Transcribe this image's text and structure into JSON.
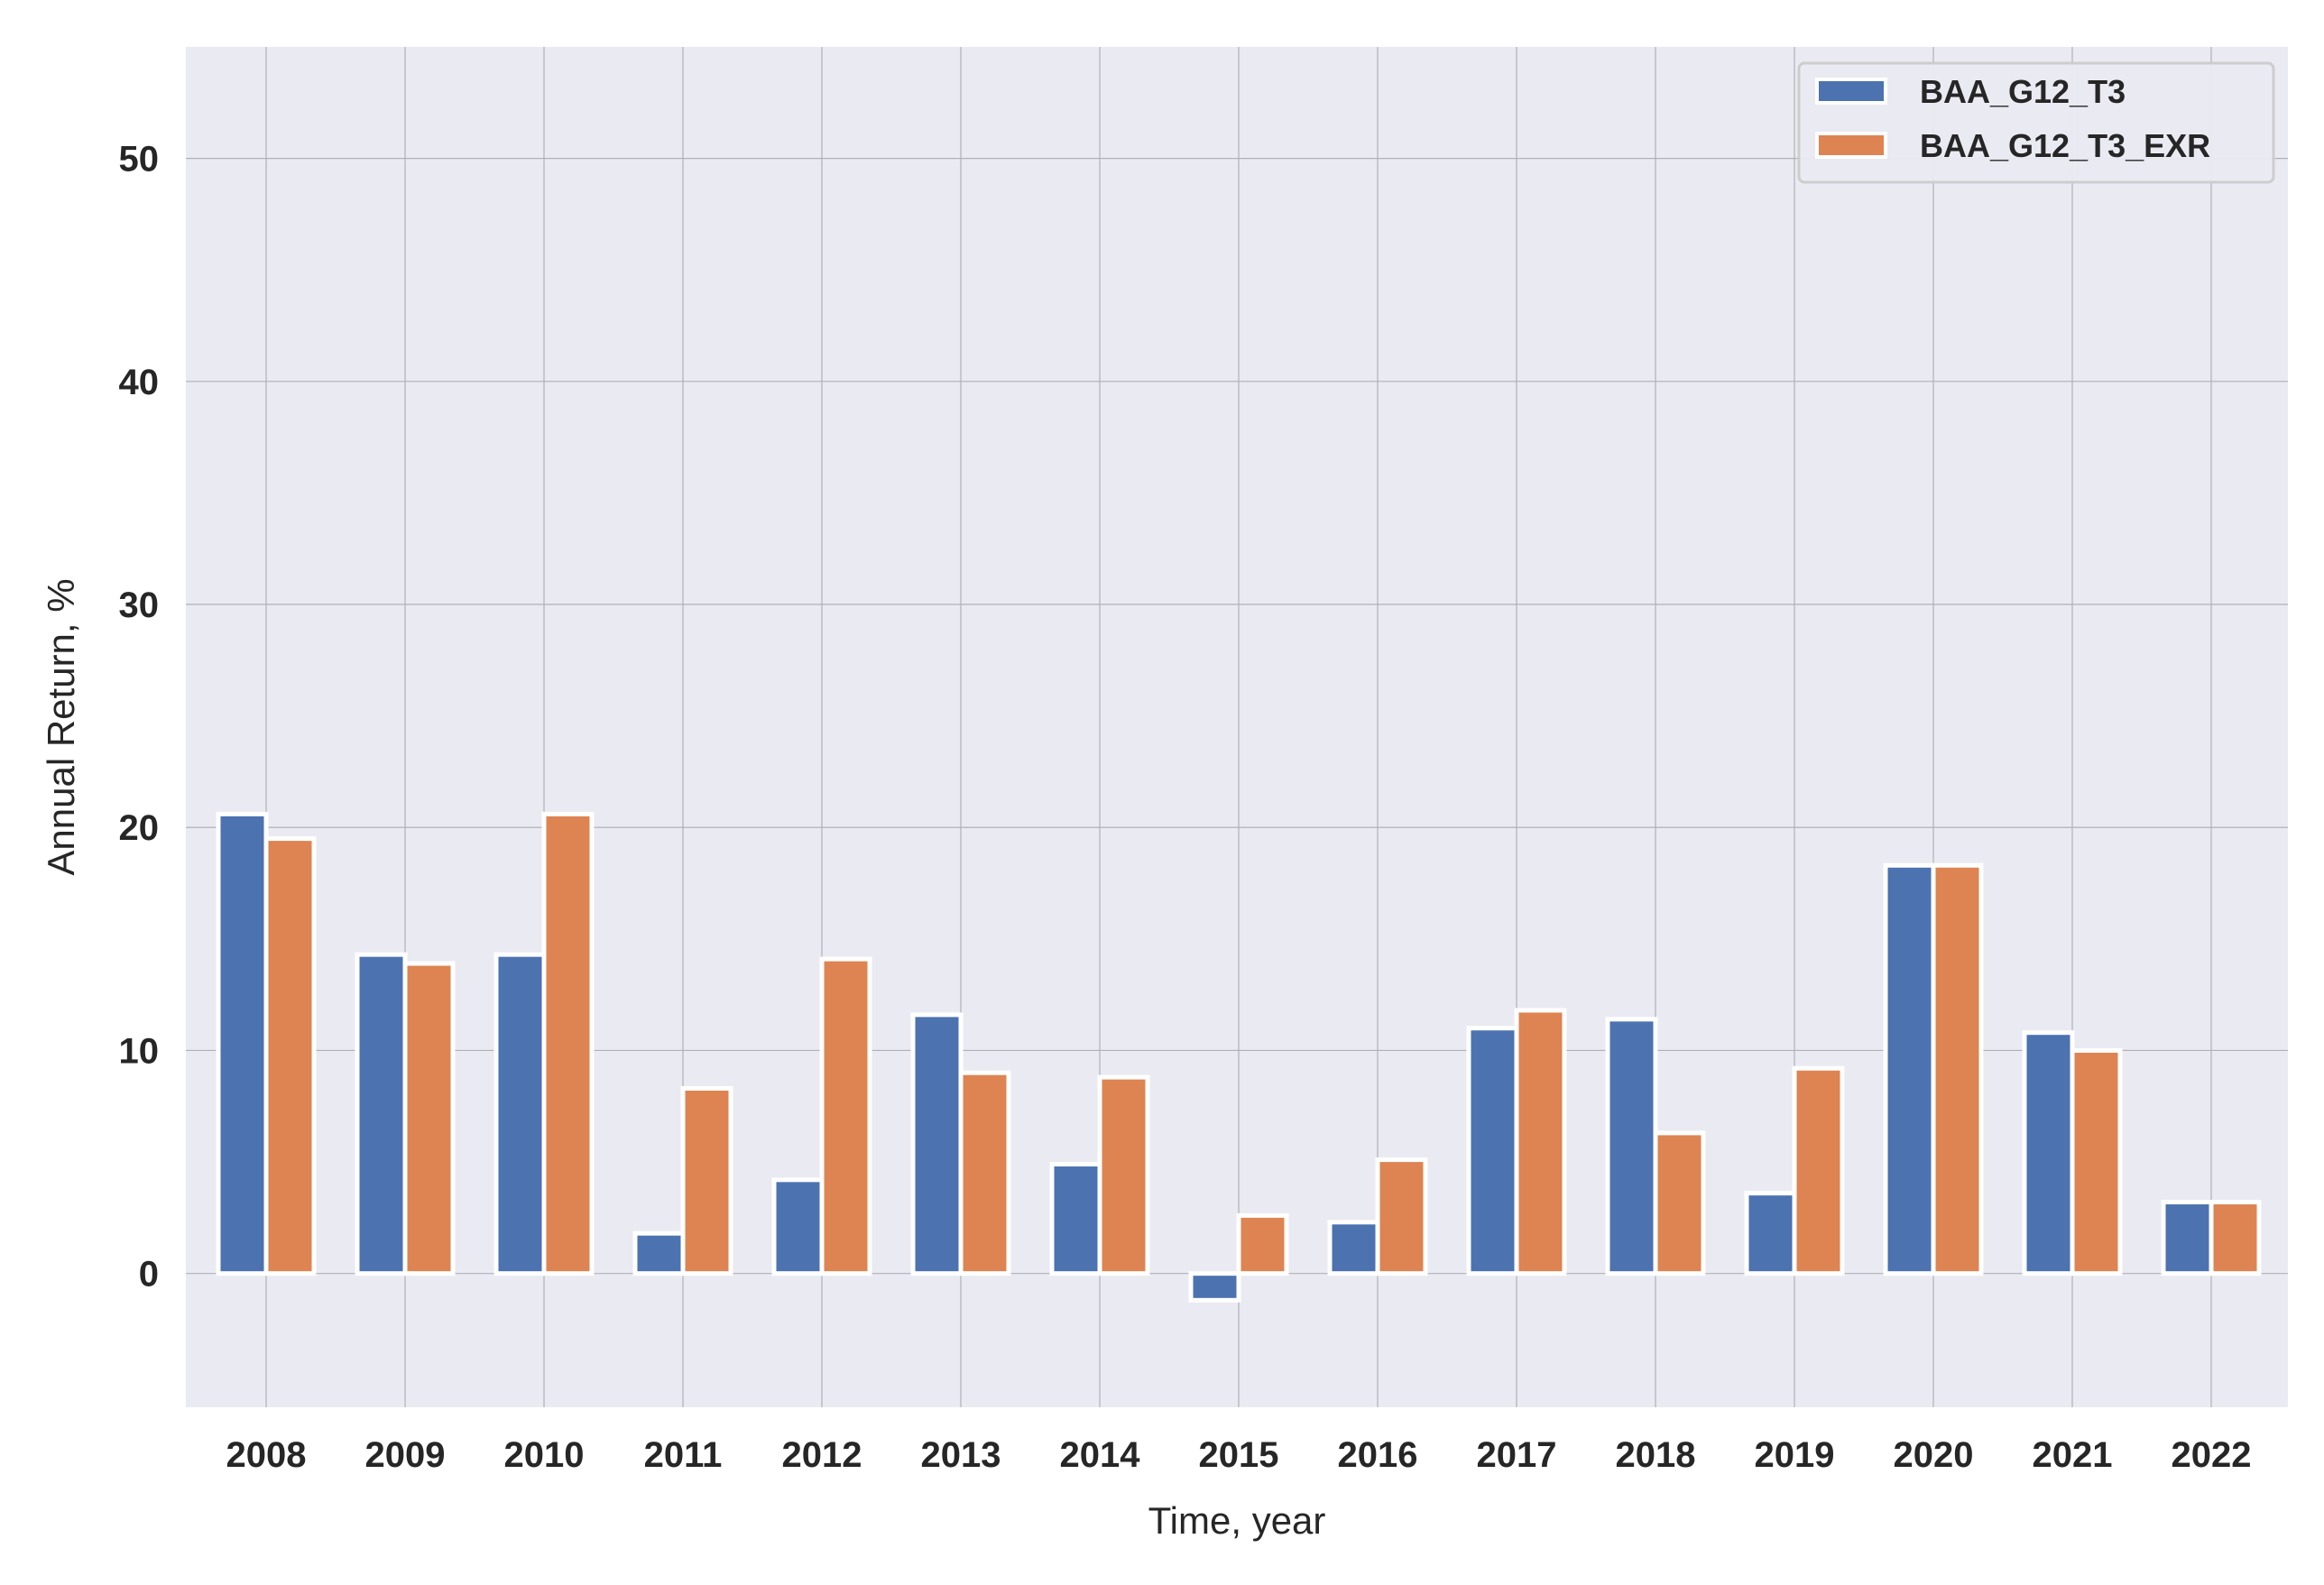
{
  "chart_data": {
    "type": "bar",
    "title": "",
    "xlabel": "Time, year",
    "ylabel": "Annual Return, %",
    "categories": [
      "2008",
      "2009",
      "2010",
      "2011",
      "2012",
      "2013",
      "2014",
      "2015",
      "2016",
      "2017",
      "2018",
      "2019",
      "2020",
      "2021",
      "2022"
    ],
    "series": [
      {
        "name": "BAA_G12_T3",
        "color": "#4c72b0",
        "values": [
          20.6,
          14.3,
          14.3,
          1.8,
          4.2,
          11.6,
          4.9,
          -1.2,
          2.3,
          11.0,
          11.4,
          3.6,
          18.3,
          10.8,
          3.2
        ]
      },
      {
        "name": "BAA_G12_T3_EXR",
        "color": "#dd8452",
        "values": [
          19.5,
          13.9,
          20.6,
          8.3,
          14.1,
          9.0,
          8.8,
          2.6,
          5.1,
          11.8,
          6.3,
          9.2,
          18.3,
          10.0,
          3.2
        ]
      }
    ],
    "ylim": [
      -6,
      55
    ],
    "yticks": [
      0,
      10,
      20,
      30,
      40,
      50
    ],
    "grid": true,
    "legend_position": "top-right",
    "background": "#eaeaf2"
  }
}
